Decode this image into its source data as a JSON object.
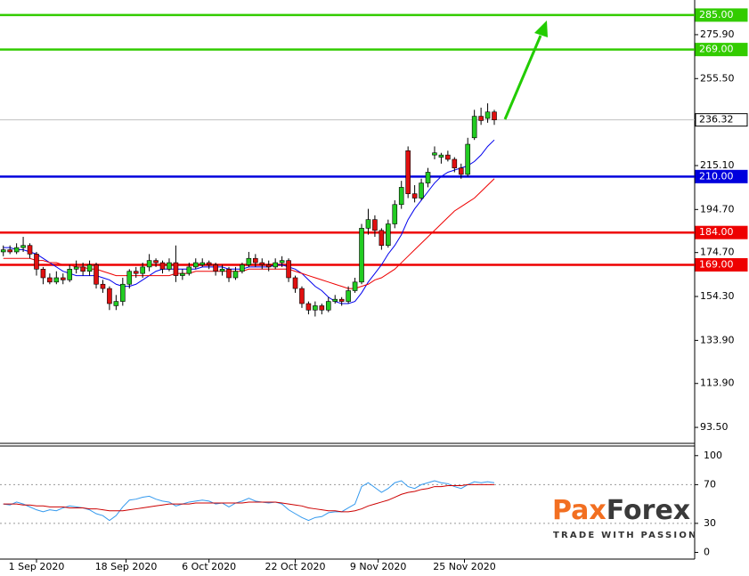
{
  "chart_data": [
    {
      "type": "candlestick",
      "up_color": "#22cc22",
      "down_color": "#e01010",
      "xlim": [
        -0.5,
        104.2
      ],
      "ylim": [
        86.5,
        292
      ],
      "xticks": [
        {
          "value": 5,
          "label": "1 Sep 2020"
        },
        {
          "value": 18.5,
          "label": "18 Sep 2020"
        },
        {
          "value": 31,
          "label": "6 Oct 2020"
        },
        {
          "value": 44,
          "label": "22 Oct 2020"
        },
        {
          "value": 56.5,
          "label": "9 Nov 2020"
        },
        {
          "value": 69.5,
          "label": "25 Nov 2020"
        }
      ],
      "yticks": [
        {
          "value": 93.5,
          "label": "93.50"
        },
        {
          "value": 113.9,
          "label": "113.90"
        },
        {
          "value": 133.9,
          "label": "133.90"
        },
        {
          "value": 154.3,
          "label": "154.30"
        },
        {
          "value": 174.7,
          "label": "174.70"
        },
        {
          "value": 194.7,
          "label": "194.70"
        },
        {
          "value": 215.1,
          "label": "215.10"
        },
        {
          "value": 255.5,
          "label": "255.50"
        },
        {
          "value": 275.9,
          "label": "275.90"
        }
      ],
      "levels": [
        {
          "value": 285,
          "label": "285.00",
          "line_color": "#33cc00",
          "box_color": "#33cc00",
          "text_color": "#ffffff"
        },
        {
          "value": 269,
          "label": "269.00",
          "line_color": "#33cc00",
          "box_color": "#33cc00",
          "text_color": "#ffffff"
        },
        {
          "value": 236.32,
          "label": "236.32",
          "line_color": "#c0c0c0",
          "box_color": "#ffffff",
          "text_color": "#000000"
        },
        {
          "value": 210,
          "label": "210.00",
          "line_color": "#0000dd",
          "box_color": "#0000dd",
          "text_color": "#ffffff"
        },
        {
          "value": 184,
          "label": "184.00",
          "line_color": "#ee0000",
          "box_color": "#ee0000",
          "text_color": "#ffffff"
        },
        {
          "value": 169,
          "label": "169.00",
          "line_color": "#ee0000",
          "box_color": "#ee0000",
          "text_color": "#ffffff"
        }
      ],
      "candles": [
        [
          175,
          178,
          173,
          176
        ],
        [
          176,
          178,
          174,
          175
        ],
        [
          175,
          179,
          174,
          177
        ],
        [
          177,
          182,
          175,
          178
        ],
        [
          178,
          179,
          172,
          174
        ],
        [
          174,
          175,
          164,
          167
        ],
        [
          167,
          168,
          160,
          163
        ],
        [
          163,
          165,
          160,
          161
        ],
        [
          161,
          166,
          160,
          163
        ],
        [
          163,
          165,
          160,
          162
        ],
        [
          162,
          169,
          161,
          167
        ],
        [
          167,
          171,
          165,
          168
        ],
        [
          168,
          170,
          164,
          166
        ],
        [
          166,
          171,
          164,
          169
        ],
        [
          169,
          170,
          158,
          160
        ],
        [
          160,
          162,
          156,
          158
        ],
        [
          158,
          159,
          148,
          151
        ],
        [
          150,
          155,
          148,
          152
        ],
        [
          152,
          163,
          150,
          160
        ],
        [
          160,
          167,
          158,
          166
        ],
        [
          166,
          168,
          163,
          165
        ],
        [
          165,
          170,
          163,
          168
        ],
        [
          168,
          174,
          166,
          171
        ],
        [
          171,
          172,
          168,
          170
        ],
        [
          170,
          171,
          165,
          167
        ],
        [
          167,
          172,
          166,
          170
        ],
        [
          170,
          178,
          161,
          164
        ],
        [
          164,
          167,
          162,
          165
        ],
        [
          165,
          170,
          164,
          168
        ],
        [
          168,
          172,
          167,
          170
        ],
        [
          169,
          172,
          168,
          170
        ],
        [
          170,
          171,
          167,
          169
        ],
        [
          169,
          170,
          164,
          166
        ],
        [
          166,
          169,
          164,
          167
        ],
        [
          167,
          168,
          161,
          163
        ],
        [
          163,
          168,
          162,
          166
        ],
        [
          166,
          170,
          165,
          169
        ],
        [
          169,
          175,
          168,
          172
        ],
        [
          172,
          174,
          168,
          170
        ],
        [
          170,
          172,
          167,
          169
        ],
        [
          169,
          171,
          166,
          168
        ],
        [
          168,
          172,
          167,
          170
        ],
        [
          170,
          173,
          168,
          171
        ],
        [
          171,
          172,
          161,
          163
        ],
        [
          163,
          164,
          156,
          158
        ],
        [
          158,
          159,
          149,
          151
        ],
        [
          151,
          152,
          146,
          148
        ],
        [
          148,
          152,
          145,
          150
        ],
        [
          150,
          151,
          146,
          148
        ],
        [
          148,
          154,
          147,
          152
        ],
        [
          152,
          155,
          151,
          153
        ],
        [
          153,
          154,
          150,
          152
        ],
        [
          152,
          159,
          151,
          157
        ],
        [
          157,
          163,
          156,
          161
        ],
        [
          161,
          188,
          160,
          186
        ],
        [
          186,
          195,
          183,
          190
        ],
        [
          190,
          192,
          182,
          185
        ],
        [
          185,
          186,
          176,
          178
        ],
        [
          178,
          190,
          177,
          188
        ],
        [
          188,
          199,
          186,
          197
        ],
        [
          197,
          208,
          195,
          205
        ],
        [
          222,
          224,
          200,
          202
        ],
        [
          202,
          206,
          198,
          200
        ],
        [
          200,
          209,
          199,
          207
        ],
        [
          207,
          214,
          205,
          212
        ],
        [
          220,
          224,
          218,
          221
        ],
        [
          219,
          221,
          216,
          220
        ],
        [
          220,
          222,
          217,
          218
        ],
        [
          218,
          219,
          212,
          214
        ],
        [
          214,
          216,
          209,
          211
        ],
        [
          211,
          228,
          210,
          225
        ],
        [
          228,
          241,
          227,
          238
        ],
        [
          238,
          242,
          234,
          236
        ],
        [
          237,
          244,
          235,
          240
        ],
        [
          240,
          241,
          234,
          236.32
        ]
      ],
      "ma_lines": [
        {
          "color": "#0000ee",
          "values": [
            177,
            177,
            176,
            176,
            175,
            174,
            172,
            170,
            168,
            166,
            165,
            164,
            164,
            164,
            164,
            163,
            162,
            160,
            159,
            159,
            160,
            162,
            164,
            166,
            167,
            167,
            167,
            167,
            167,
            167,
            168,
            168,
            168,
            168,
            167,
            167,
            167,
            168,
            168,
            168,
            168,
            169,
            169,
            168,
            167,
            165,
            162,
            159,
            157,
            154,
            152,
            151,
            151,
            152,
            156,
            161,
            165,
            169,
            174,
            178,
            183,
            190,
            195,
            199,
            203,
            207,
            210,
            212,
            213,
            214,
            215,
            217,
            220,
            224,
            227
          ]
        },
        {
          "color": "#ee0000",
          "values": [
            172,
            172,
            172,
            172,
            172,
            171,
            171,
            170,
            170,
            169,
            169,
            168,
            168,
            167,
            167,
            166,
            165,
            164,
            164,
            164,
            164,
            164,
            164,
            164,
            164,
            164,
            165,
            165,
            165,
            166,
            166,
            166,
            166,
            166,
            166,
            166,
            166,
            167,
            167,
            167,
            167,
            167,
            167,
            167,
            166,
            165,
            164,
            163,
            162,
            161,
            160,
            159,
            158,
            158,
            159,
            160,
            162,
            163,
            165,
            167,
            170,
            173,
            176,
            179,
            182,
            185,
            188,
            191,
            194,
            196,
            198,
            200,
            203,
            206,
            209
          ]
        }
      ]
    },
    {
      "type": "line",
      "xlim": [
        -0.5,
        104.2
      ],
      "ylim": [
        -6,
        109
      ],
      "yticks": [
        0,
        30,
        70,
        100
      ],
      "levels": [
        30,
        70
      ],
      "series": [
        {
          "color": "#3399ee",
          "values": [
            50,
            49,
            52,
            50,
            47,
            44,
            42,
            44,
            43,
            46,
            48,
            47,
            46,
            44,
            40,
            38,
            33,
            38,
            47,
            54,
            55,
            57,
            58,
            55,
            53,
            52,
            48,
            50,
            52,
            53,
            54,
            53,
            50,
            51,
            47,
            51,
            53,
            56,
            53,
            52,
            51,
            52,
            50,
            44,
            40,
            36,
            33,
            36,
            37,
            41,
            42,
            42,
            46,
            50,
            68,
            72,
            67,
            62,
            66,
            72,
            74,
            68,
            66,
            70,
            72,
            74,
            72,
            71,
            68,
            66,
            70,
            73,
            72,
            73,
            72
          ]
        },
        {
          "color": "#cc0000",
          "values": [
            50,
            50,
            50,
            49,
            49,
            48,
            48,
            47,
            47,
            47,
            46,
            46,
            46,
            45,
            45,
            44,
            43,
            43,
            43,
            44,
            45,
            46,
            47,
            48,
            49,
            50,
            50,
            50,
            50,
            51,
            51,
            51,
            51,
            51,
            51,
            51,
            51,
            52,
            52,
            52,
            52,
            52,
            51,
            50,
            49,
            48,
            46,
            45,
            44,
            43,
            43,
            42,
            42,
            43,
            45,
            48,
            50,
            52,
            54,
            57,
            60,
            62,
            63,
            65,
            66,
            68,
            68,
            69,
            69,
            69,
            70,
            70,
            70,
            70,
            70
          ]
        }
      ]
    }
  ],
  "logo": {
    "brand_a": "Pax",
    "brand_b": "Forex",
    "tagline": "TRADE WITH PASSION"
  }
}
